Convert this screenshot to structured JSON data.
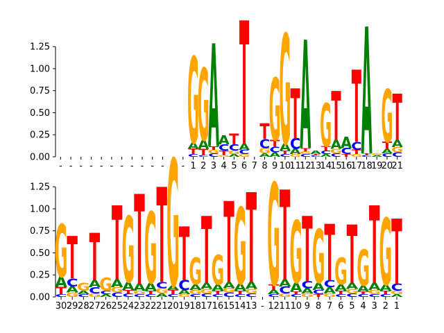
{
  "colors": {
    "A": "#008000",
    "C": "#0000ff",
    "G": "#ffa500",
    "T": "#ff0000"
  },
  "chart_data": [
    {
      "type": "sequence-logo",
      "title": "",
      "ylim": [
        0,
        1.48
      ],
      "yticks": [
        0.0,
        0.25,
        0.5,
        0.75,
        1.0,
        1.25
      ],
      "ytick_labels": [
        "0.00",
        "0.25",
        "0.50",
        "0.75",
        "1.00",
        "1.25"
      ],
      "positions": [
        {
          "label": "-",
          "stack": []
        },
        {
          "label": "-",
          "stack": []
        },
        {
          "label": "-",
          "stack": []
        },
        {
          "label": "-",
          "stack": []
        },
        {
          "label": "-",
          "stack": []
        },
        {
          "label": "-",
          "stack": []
        },
        {
          "label": "-",
          "stack": []
        },
        {
          "label": "-",
          "stack": []
        },
        {
          "label": "-",
          "stack": []
        },
        {
          "label": "-",
          "stack": []
        },
        {
          "label": "-",
          "stack": []
        },
        {
          "label": "-",
          "stack": []
        },
        {
          "label": "-",
          "stack": []
        },
        {
          "label": "1",
          "stack": [
            [
              "C",
              0.03
            ],
            [
              "T",
              0.06
            ],
            [
              "A",
              0.07
            ],
            [
              "G",
              0.98
            ]
          ]
        },
        {
          "label": "2",
          "stack": [
            [
              "C",
              0.02
            ],
            [
              "T",
              0.07
            ],
            [
              "A",
              0.1
            ],
            [
              "G",
              0.82
            ]
          ]
        },
        {
          "label": "3",
          "stack": [
            [
              "C",
              0.04
            ],
            [
              "G",
              0.04
            ],
            [
              "T",
              0.04
            ],
            [
              "A",
              1.17
            ]
          ]
        },
        {
          "label": "4",
          "stack": [
            [
              "G",
              0.02
            ],
            [
              "T",
              0.05
            ],
            [
              "C",
              0.07
            ],
            [
              "A",
              0.1
            ]
          ]
        },
        {
          "label": "5",
          "stack": [
            [
              "A",
              0.03
            ],
            [
              "G",
              0.04
            ],
            [
              "C",
              0.07
            ],
            [
              "T",
              0.12
            ]
          ]
        },
        {
          "label": "6",
          "stack": [
            [
              "G",
              0.03
            ],
            [
              "C",
              0.05
            ],
            [
              "A",
              0.07
            ],
            [
              "T",
              1.4
            ]
          ]
        },
        {
          "label": "7",
          "stack": []
        },
        {
          "label": "8",
          "stack": [
            [
              "A",
              0.04
            ],
            [
              "G",
              0.06
            ],
            [
              "C",
              0.1
            ],
            [
              "T",
              0.18
            ]
          ]
        },
        {
          "label": "9",
          "stack": [
            [
              "A",
              0.05
            ],
            [
              "C",
              0.06
            ],
            [
              "T",
              0.08
            ],
            [
              "G",
              0.71
            ]
          ]
        },
        {
          "label": "10",
          "stack": [
            [
              "C",
              0.03
            ],
            [
              "T",
              0.04
            ],
            [
              "A",
              0.08
            ],
            [
              "G",
              1.25
            ]
          ]
        },
        {
          "label": "11",
          "stack": [
            [
              "G",
              0.03
            ],
            [
              "A",
              0.06
            ],
            [
              "C",
              0.12
            ],
            [
              "T",
              0.57
            ]
          ]
        },
        {
          "label": "12",
          "stack": [
            [
              "C",
              0.03
            ],
            [
              "G",
              0.03
            ],
            [
              "T",
              0.04
            ],
            [
              "A",
              1.23
            ]
          ]
        },
        {
          "label": "13",
          "stack": [
            [
              "C",
              0.02
            ],
            [
              "T",
              0.01
            ],
            [
              "A",
              0.04
            ]
          ]
        },
        {
          "label": "14",
          "stack": [
            [
              "A",
              0.03
            ],
            [
              "C",
              0.04
            ],
            [
              "T",
              0.05
            ],
            [
              "G",
              0.49
            ]
          ]
        },
        {
          "label": "15",
          "stack": [
            [
              "C",
              0.04
            ],
            [
              "G",
              0.05
            ],
            [
              "A",
              0.1
            ],
            [
              "T",
              0.56
            ]
          ]
        },
        {
          "label": "16",
          "stack": [
            [
              "T",
              0.03
            ],
            [
              "C",
              0.07
            ],
            [
              "A",
              0.13
            ]
          ]
        },
        {
          "label": "17",
          "stack": [
            [
              "G",
              0.03
            ],
            [
              "T",
              0.05
            ],
            [
              "C",
              0.09
            ],
            [
              "T",
              0.82
            ]
          ]
        },
        {
          "label": "18",
          "stack": [
            [
              "C",
              0.02
            ],
            [
              "T",
              0.02
            ],
            [
              "A",
              1.44
            ]
          ]
        },
        {
          "label": "19",
          "stack": [
            [
              "A",
              0.02
            ],
            [
              "G",
              0.02
            ]
          ]
        },
        {
          "label": "20",
          "stack": [
            [
              "C",
              0.04
            ],
            [
              "A",
              0.05
            ],
            [
              "T",
              0.08
            ],
            [
              "G",
              0.6
            ]
          ]
        },
        {
          "label": "21",
          "stack": [
            [
              "C",
              0.05
            ],
            [
              "G",
              0.06
            ],
            [
              "A",
              0.08
            ],
            [
              "T",
              0.53
            ]
          ]
        }
      ]
    },
    {
      "type": "sequence-logo",
      "title": "",
      "ylim": [
        0,
        1.48
      ],
      "yticks": [
        0.0,
        0.25,
        0.5,
        0.75,
        1.0,
        1.25
      ],
      "ytick_labels": [
        "0.00",
        "0.25",
        "0.50",
        "0.75",
        "1.00",
        "1.25"
      ],
      "positions": [
        {
          "label": "30",
          "stack": [
            [
              "C",
              0.03
            ],
            [
              "T",
              0.08
            ],
            [
              "A",
              0.12
            ],
            [
              "G",
              0.6
            ]
          ]
        },
        {
          "label": "29",
          "stack": [
            [
              "G",
              0.05
            ],
            [
              "A",
              0.07
            ],
            [
              "C",
              0.09
            ],
            [
              "T",
              0.48
            ]
          ]
        },
        {
          "label": "28",
          "stack": [
            [
              "C",
              0.03
            ],
            [
              "A",
              0.04
            ],
            [
              "G",
              0.09
            ]
          ]
        },
        {
          "label": "27",
          "stack": [
            [
              "G",
              0.04
            ],
            [
              "C",
              0.07
            ],
            [
              "A",
              0.08
            ],
            [
              "T",
              0.54
            ]
          ]
        },
        {
          "label": "26",
          "stack": [
            [
              "A",
              0.03
            ],
            [
              "C",
              0.04
            ],
            [
              "G",
              0.15
            ]
          ]
        },
        {
          "label": "25",
          "stack": [
            [
              "C",
              0.05
            ],
            [
              "G",
              0.06
            ],
            [
              "A",
              0.09
            ],
            [
              "T",
              0.84
            ]
          ]
        },
        {
          "label": "24",
          "stack": [
            [
              "C",
              0.04
            ],
            [
              "T",
              0.04
            ],
            [
              "A",
              0.09
            ],
            [
              "G",
              0.75
            ]
          ]
        },
        {
          "label": "23",
          "stack": [
            [
              "C",
              0.03
            ],
            [
              "G",
              0.04
            ],
            [
              "A",
              0.08
            ],
            [
              "T",
              1.02
            ]
          ]
        },
        {
          "label": "22",
          "stack": [
            [
              "C",
              0.03
            ],
            [
              "T",
              0.04
            ],
            [
              "A",
              0.09
            ],
            [
              "G",
              0.81
            ]
          ]
        },
        {
          "label": "21",
          "stack": [
            [
              "A",
              0.04
            ],
            [
              "G",
              0.06
            ],
            [
              "C",
              0.07
            ],
            [
              "T",
              1.08
            ]
          ]
        },
        {
          "label": "20",
          "stack": [
            [
              "C",
              0.03
            ],
            [
              "T",
              0.05
            ],
            [
              "A",
              0.05
            ],
            [
              "G",
              1.44
            ]
          ]
        },
        {
          "label": "19",
          "stack": [
            [
              "G",
              0.03
            ],
            [
              "A",
              0.05
            ],
            [
              "C",
              0.11
            ],
            [
              "T",
              0.61
            ]
          ]
        },
        {
          "label": "18",
          "stack": [
            [
              "C",
              0.03
            ],
            [
              "G",
              0.05
            ],
            [
              "A",
              0.06
            ],
            [
              "G",
              0.3
            ]
          ]
        },
        {
          "label": "17",
          "stack": [
            [
              "C",
              0.04
            ],
            [
              "G",
              0.05
            ],
            [
              "A",
              0.07
            ],
            [
              "T",
              0.76
            ]
          ]
        },
        {
          "label": "16",
          "stack": [
            [
              "C",
              0.03
            ],
            [
              "T",
              0.04
            ],
            [
              "A",
              0.07
            ],
            [
              "G",
              0.34
            ]
          ]
        },
        {
          "label": "15",
          "stack": [
            [
              "C",
              0.05
            ],
            [
              "G",
              0.05
            ],
            [
              "A",
              0.07
            ],
            [
              "T",
              0.92
            ]
          ]
        },
        {
          "label": "14",
          "stack": [
            [
              "C",
              0.03
            ],
            [
              "T",
              0.04
            ],
            [
              "A",
              0.08
            ],
            [
              "G",
              0.87
            ]
          ]
        },
        {
          "label": "13",
          "stack": [
            [
              "C",
              0.04
            ],
            [
              "G",
              0.05
            ],
            [
              "A",
              0.08
            ],
            [
              "T",
              1.02
            ]
          ]
        },
        {
          "label": "-",
          "stack": []
        },
        {
          "label": "12",
          "stack": [
            [
              "C",
              0.03
            ],
            [
              "A",
              0.05
            ],
            [
              "T",
              0.06
            ],
            [
              "G",
              1.16
            ]
          ]
        },
        {
          "label": "11",
          "stack": [
            [
              "G",
              0.04
            ],
            [
              "C",
              0.08
            ],
            [
              "A",
              0.08
            ],
            [
              "T",
              1.02
            ]
          ]
        },
        {
          "label": "10",
          "stack": [
            [
              "C",
              0.03
            ],
            [
              "T",
              0.03
            ],
            [
              "A",
              0.1
            ],
            [
              "G",
              0.71
            ]
          ]
        },
        {
          "label": "9",
          "stack": [
            [
              "G",
              0.04
            ],
            [
              "A",
              0.06
            ],
            [
              "C",
              0.08
            ],
            [
              "T",
              0.74
            ]
          ]
        },
        {
          "label": "8",
          "stack": [
            [
              "T",
              0.03
            ],
            [
              "C",
              0.05
            ],
            [
              "A",
              0.08
            ],
            [
              "G",
              0.61
            ]
          ]
        },
        {
          "label": "7",
          "stack": [
            [
              "G",
              0.04
            ],
            [
              "A",
              0.07
            ],
            [
              "C",
              0.08
            ],
            [
              "T",
              0.64
            ]
          ]
        },
        {
          "label": "6",
          "stack": [
            [
              "C",
              0.03
            ],
            [
              "T",
              0.04
            ],
            [
              "A",
              0.07
            ],
            [
              "G",
              0.3
            ]
          ]
        },
        {
          "label": "5",
          "stack": [
            [
              "C",
              0.04
            ],
            [
              "G",
              0.05
            ],
            [
              "A",
              0.07
            ],
            [
              "T",
              0.66
            ]
          ]
        },
        {
          "label": "4",
          "stack": [
            [
              "C",
              0.03
            ],
            [
              "T",
              0.03
            ],
            [
              "A",
              0.07
            ],
            [
              "G",
              0.41
            ]
          ]
        },
        {
          "label": "3",
          "stack": [
            [
              "C",
              0.03
            ],
            [
              "G",
              0.05
            ],
            [
              "A",
              0.08
            ],
            [
              "T",
              0.88
            ]
          ]
        },
        {
          "label": "2",
          "stack": [
            [
              "C",
              0.03
            ],
            [
              "T",
              0.04
            ],
            [
              "A",
              0.07
            ],
            [
              "G",
              0.76
            ]
          ]
        },
        {
          "label": "1",
          "stack": [
            [
              "A",
              0.03
            ],
            [
              "G",
              0.04
            ],
            [
              "C",
              0.08
            ],
            [
              "T",
              0.74
            ]
          ]
        }
      ]
    }
  ]
}
